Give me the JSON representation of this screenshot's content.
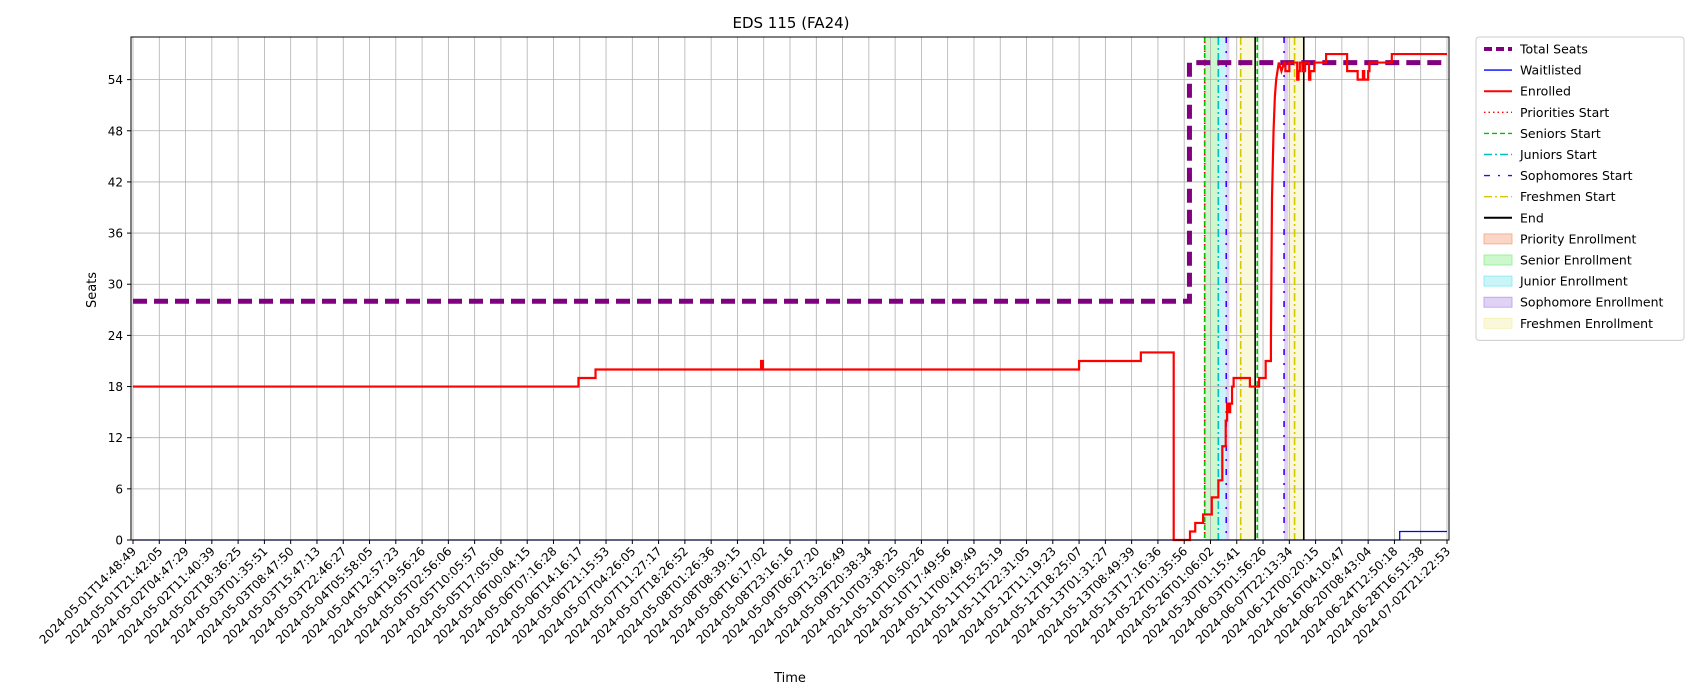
{
  "chart_data": {
    "type": "line",
    "title": "EDS 115 (FA24)",
    "xlabel": "Time",
    "ylabel": "Seats",
    "x_tick_labels": [
      "2024-05-01T14:48:49",
      "2024-05-01T21:42:05",
      "2024-05-02T04:47:29",
      "2024-05-02T11:40:39",
      "2024-05-02T18:36:25",
      "2024-05-03T01:35:51",
      "2024-05-03T08:47:50",
      "2024-05-03T15:47:13",
      "2024-05-03T22:46:27",
      "2024-05-04T05:58:05",
      "2024-05-04T12:57:23",
      "2024-05-04T19:56:26",
      "2024-05-05T02:56:06",
      "2024-05-05T10:05:57",
      "2024-05-05T17:05:06",
      "2024-05-06T00:04:15",
      "2024-05-06T07:16:28",
      "2024-05-06T14:16:17",
      "2024-05-06T21:15:53",
      "2024-05-07T04:26:05",
      "2024-05-07T11:27:17",
      "2024-05-07T18:26:52",
      "2024-05-08T01:26:36",
      "2024-05-08T08:39:15",
      "2024-05-08T16:17:02",
      "2024-05-08T23:16:16",
      "2024-05-09T06:27:20",
      "2024-05-09T13:26:49",
      "2024-05-09T20:38:34",
      "2024-05-10T03:38:25",
      "2024-05-10T10:50:26",
      "2024-05-10T17:49:56",
      "2024-05-11T00:49:49",
      "2024-05-11T15:25:19",
      "2024-05-11T22:31:05",
      "2024-05-12T11:19:23",
      "2024-05-12T18:25:07",
      "2024-05-13T01:31:27",
      "2024-05-13T08:49:39",
      "2024-05-13T17:16:36",
      "2024-05-22T01:35:56",
      "2024-05-26T01:06:02",
      "2024-05-30T01:15:41",
      "2024-06-03T01:56:26",
      "2024-06-07T22:13:34",
      "2024-06-12T00:20:15",
      "2024-06-16T04:10:47",
      "2024-06-20T08:43:04",
      "2024-06-24T12:50:18",
      "2024-06-28T16:51:38",
      "2024-07-02T21:22:53"
    ],
    "ylim": [
      0,
      59
    ],
    "y_ticks": [
      0,
      6,
      12,
      18,
      24,
      30,
      36,
      42,
      48,
      54
    ],
    "grid": true,
    "legend_position": "outside-right",
    "series": [
      {
        "name": "Total Seats",
        "color": "#800080",
        "style": "dashed-thick",
        "x": [
          0,
          40.2,
          40.2,
          50.0
        ],
        "y": [
          28,
          28,
          56,
          56
        ]
      },
      {
        "name": "Waitlisted",
        "color": "#0000ff",
        "style": "solid-thin",
        "x": [
          0,
          48.2,
          48.2,
          50.0
        ],
        "y": [
          0,
          0,
          1,
          1
        ]
      },
      {
        "name": "Enrolled",
        "color": "#ff0000",
        "style": "solid",
        "x": [
          0,
          16.95,
          16.95,
          17.6,
          17.6,
          23.9,
          23.9,
          23.97,
          23.97,
          36.0,
          36.0,
          38.35,
          38.35,
          39.6,
          39.6,
          40.22,
          40.22,
          40.42,
          40.42,
          40.72,
          40.72,
          41.05,
          41.05,
          41.3,
          41.3,
          41.45,
          41.45,
          41.58,
          41.58,
          41.63,
          41.63,
          41.7,
          41.7,
          41.75,
          41.75,
          41.82,
          41.82,
          41.88,
          41.88,
          42.5,
          42.5,
          42.85,
          42.85,
          43.1,
          43.1,
          43.3,
          43.3,
          43.32,
          43.34,
          43.4,
          43.45,
          43.5,
          43.6,
          43.7,
          43.8,
          43.85,
          43.85,
          44.0,
          44.0,
          44.3,
          44.3,
          44.35,
          44.35,
          44.4,
          44.4,
          44.5,
          44.5,
          44.6,
          44.6,
          44.75,
          44.75,
          44.8,
          44.8,
          44.95,
          44.95,
          45.4,
          45.4,
          46.2,
          46.2,
          46.6,
          46.6,
          46.8,
          46.8,
          46.85,
          46.85,
          47.0,
          47.0,
          47.05,
          47.05,
          47.9,
          47.9,
          50.0
        ],
        "y": [
          18,
          18,
          19,
          19,
          20,
          20,
          21,
          21,
          20,
          20,
          21,
          21,
          22,
          22,
          0,
          0,
          1,
          1,
          2,
          2,
          3,
          3,
          5,
          5,
          7,
          7,
          11,
          11,
          14,
          14,
          16,
          16,
          15,
          15,
          16,
          16,
          18,
          18,
          19,
          19,
          18,
          18,
          19,
          19,
          21,
          21,
          23,
          32,
          40,
          48,
          52,
          54,
          56,
          55,
          56,
          56,
          55,
          55,
          56,
          56,
          54,
          54,
          55,
          55,
          56,
          56,
          55,
          55,
          56,
          56,
          54,
          54,
          55,
          55,
          56,
          56,
          57,
          57,
          55,
          55,
          54,
          54,
          55,
          55,
          54,
          54,
          55,
          55,
          56,
          56,
          57,
          57
        ]
      }
    ],
    "vertical_lines": [
      {
        "name": "Priorities Start",
        "color": "#ff0000",
        "style": "dotted",
        "x": [
          40.78
        ]
      },
      {
        "name": "Seniors Start",
        "color": "#00c000",
        "style": "dashed",
        "x": [
          40.78,
          42.78
        ]
      },
      {
        "name": "Juniors Start",
        "color": "#00bfbf",
        "style": "dashdot",
        "x": [
          41.3
        ]
      },
      {
        "name": "Sophomores Start",
        "color": "#4000ff",
        "style": "dashdotsparse",
        "x": [
          41.6,
          43.8
        ]
      },
      {
        "name": "Freshmen Start",
        "color": "#d6c800",
        "style": "dashdot",
        "x": [
          42.15,
          44.2
        ]
      },
      {
        "name": "End",
        "color": "#000000",
        "style": "solid",
        "x": [
          42.7,
          44.55
        ]
      }
    ],
    "spans": [
      {
        "name": "Priority Enrollment",
        "color": "#f4a582"
      },
      {
        "name": "Senior Enrollment",
        "color": "#90ee90",
        "ranges": [
          [
            40.78,
            41.3
          ],
          [
            42.78,
            42.85
          ]
        ]
      },
      {
        "name": "Junior Enrollment",
        "color": "#87e8f0",
        "ranges": [
          [
            41.3,
            41.6
          ]
        ]
      },
      {
        "name": "Sophomore Enrollment",
        "color": "#b79ce8",
        "ranges": [
          [
            41.6,
            41.72
          ],
          [
            43.8,
            43.95
          ]
        ]
      },
      {
        "name": "Freshmen Enrollment",
        "color": "#f5f0b0",
        "ranges": [
          [
            42.1,
            42.7
          ],
          [
            43.95,
            44.55
          ]
        ]
      }
    ]
  }
}
